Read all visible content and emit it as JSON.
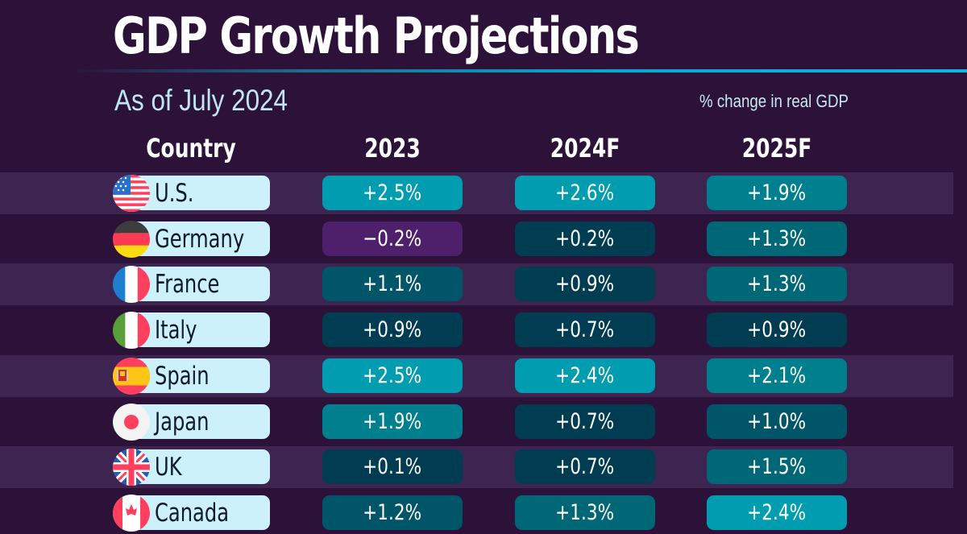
{
  "header": {
    "title": "GDP Growth Projections",
    "subtitle": "As of July 2024",
    "unit_note": "% change in real GDP"
  },
  "colors": {
    "background": "#2c1238",
    "stripe": "#3e2450",
    "country_pill": "#cdf1fa",
    "negative": "#4e1f6a",
    "scale": {
      "very_high": "#009db0",
      "high": "#00808f",
      "mid": "#006777",
      "low_mid": "#005569",
      "low": "#003d52"
    }
  },
  "chart_data": {
    "type": "table",
    "title": "GDP Growth Projections",
    "subtitle": "As of July 2024",
    "unit": "% change in real GDP",
    "columns": [
      "Country",
      "2023",
      "2024F",
      "2025F"
    ],
    "rows": [
      {
        "country": "U.S.",
        "flag": "us-flag-icon",
        "values": [
          2.5,
          2.6,
          1.9
        ],
        "labels": [
          "+2.5%",
          "+2.6%",
          "+1.9%"
        ]
      },
      {
        "country": "Germany",
        "flag": "germany-flag-icon",
        "values": [
          -0.2,
          0.2,
          1.3
        ],
        "labels": [
          "−0.2%",
          "+0.2%",
          "+1.3%"
        ]
      },
      {
        "country": "France",
        "flag": "france-flag-icon",
        "values": [
          1.1,
          0.9,
          1.3
        ],
        "labels": [
          "+1.1%",
          "+0.9%",
          "+1.3%"
        ]
      },
      {
        "country": "Italy",
        "flag": "italy-flag-icon",
        "values": [
          0.9,
          0.7,
          0.9
        ],
        "labels": [
          "+0.9%",
          "+0.7%",
          "+0.9%"
        ]
      },
      {
        "country": "Spain",
        "flag": "spain-flag-icon",
        "values": [
          2.5,
          2.4,
          2.1
        ],
        "labels": [
          "+2.5%",
          "+2.4%",
          "+2.1%"
        ]
      },
      {
        "country": "Japan",
        "flag": "japan-flag-icon",
        "values": [
          1.9,
          0.7,
          1.0
        ],
        "labels": [
          "+1.9%",
          "+0.7%",
          "+1.0%"
        ]
      },
      {
        "country": "UK",
        "flag": "uk-flag-icon",
        "values": [
          0.1,
          0.7,
          1.5
        ],
        "labels": [
          "+0.1%",
          "+0.7%",
          "+1.5%"
        ]
      },
      {
        "country": "Canada",
        "flag": "canada-flag-icon",
        "values": [
          1.2,
          1.3,
          2.4
        ],
        "labels": [
          "+1.2%",
          "+1.3%",
          "+2.4%"
        ]
      }
    ]
  }
}
